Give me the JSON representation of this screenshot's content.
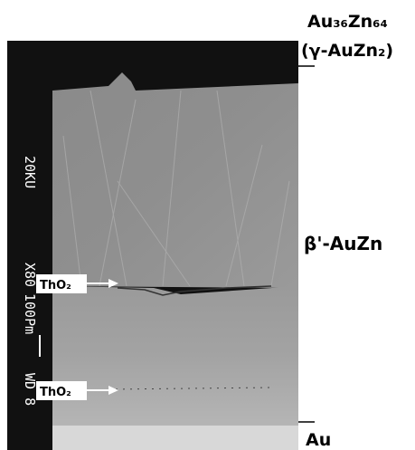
{
  "phases": {
    "top": {
      "formula": "Au₃₆Zn₆₄",
      "name": "(γ-AuZn₂)"
    },
    "middle": "β'-AuZn",
    "bottom": "Au"
  },
  "markers": [
    "ThO₂",
    "ThO₂"
  ],
  "sem_info": {
    "voltage": "20KU",
    "magnification": "X80",
    "scale": "100Pm",
    "working_distance": "WD 8"
  }
}
